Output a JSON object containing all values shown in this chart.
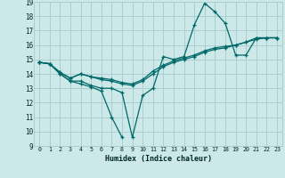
{
  "xlabel": "Humidex (Indice chaleur)",
  "bg_color": "#cce8e8",
  "grid_color": "#aacece",
  "line_color": "#006868",
  "xlim": [
    -0.5,
    23.5
  ],
  "ylim": [
    9,
    19
  ],
  "xticks": [
    0,
    1,
    2,
    3,
    4,
    5,
    6,
    7,
    8,
    9,
    10,
    11,
    12,
    13,
    14,
    15,
    16,
    17,
    18,
    19,
    20,
    21,
    22,
    23
  ],
  "yticks": [
    9,
    10,
    11,
    12,
    13,
    14,
    15,
    16,
    17,
    18,
    19
  ],
  "lines": [
    {
      "x": [
        0,
        1,
        2,
        3,
        4,
        5,
        6,
        7,
        8,
        9,
        10,
        11,
        12,
        13,
        14,
        15,
        16,
        17,
        18,
        19,
        20,
        21,
        22,
        23
      ],
      "y": [
        14.8,
        14.7,
        14.0,
        13.5,
        13.5,
        13.2,
        13.0,
        13.0,
        12.7,
        9.6,
        12.5,
        13.0,
        15.2,
        15.0,
        15.2,
        17.4,
        18.9,
        18.3,
        17.5,
        15.3,
        15.3,
        16.5,
        16.5,
        16.5
      ]
    },
    {
      "x": [
        0,
        1,
        2,
        3,
        4,
        5,
        6,
        7,
        8,
        9,
        10,
        11,
        12,
        13,
        14,
        15,
        16,
        17,
        18,
        19,
        20,
        21,
        22,
        23
      ],
      "y": [
        14.8,
        14.7,
        14.1,
        13.7,
        14.0,
        13.8,
        13.6,
        13.5,
        13.3,
        13.2,
        13.5,
        14.0,
        14.5,
        14.8,
        15.0,
        15.2,
        15.5,
        15.7,
        15.8,
        16.0,
        16.2,
        16.4,
        16.5,
        16.5
      ]
    },
    {
      "x": [
        0,
        1,
        2,
        3,
        4,
        5,
        6,
        7,
        8,
        9,
        10,
        11,
        12,
        13,
        14,
        15,
        16,
        17,
        18,
        19,
        20,
        21,
        22,
        23
      ],
      "y": [
        14.8,
        14.7,
        14.1,
        13.7,
        14.0,
        13.8,
        13.7,
        13.6,
        13.4,
        13.3,
        13.6,
        14.2,
        14.6,
        14.9,
        15.1,
        15.3,
        15.6,
        15.8,
        15.9,
        16.0,
        16.2,
        16.5,
        16.5,
        16.5
      ]
    },
    {
      "x": [
        0,
        1,
        2,
        3,
        4,
        5,
        6,
        7,
        8
      ],
      "y": [
        14.8,
        14.7,
        14.0,
        13.5,
        13.3,
        13.1,
        12.8,
        11.0,
        9.6
      ]
    }
  ]
}
